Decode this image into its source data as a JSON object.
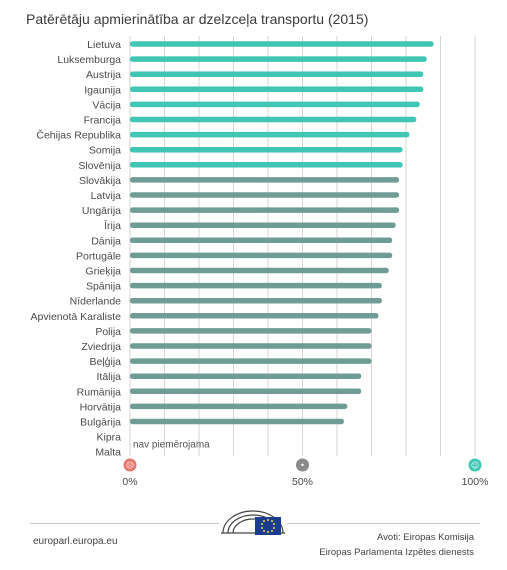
{
  "chart_data": {
    "type": "bar",
    "orientation": "horizontal",
    "title": "Patērētāju apmierinātība ar dzelzceļa transportu (2015)",
    "xlim": [
      0,
      100
    ],
    "ticks": [
      "0%",
      "50%",
      "100%"
    ],
    "grid": true,
    "categories": [
      "Lietuva",
      "Luksemburga",
      "Austrija",
      "Igaunija",
      "Vācija",
      "Francija",
      "Čehijas Republika",
      "Somija",
      "Slovēnija",
      "Slovākija",
      "Latvija",
      "Ungārija",
      "Īrija",
      "Dānija",
      "Portugāle",
      "Grieķija",
      "Spānija",
      "Nīderlande",
      "Apvienotā Karaliste",
      "Polija",
      "Zviedrija",
      "Beļģija",
      "Itālija",
      "Rumānija",
      "Horvātija",
      "Bulgārija",
      "Kipra",
      "Malta"
    ],
    "values": [
      88,
      86,
      85,
      85,
      84,
      83,
      81,
      79,
      79,
      78,
      78,
      78,
      77,
      76,
      76,
      75,
      73,
      73,
      72,
      70,
      70,
      70,
      67,
      67,
      63,
      62,
      null,
      null
    ],
    "highlight_count": 9,
    "colors": {
      "highlight": "#3fc6b4",
      "normal": "#6f9c95"
    },
    "na_label": "nav piemērojama",
    "scale_icons": [
      {
        "name": "sad-face-icon",
        "color": "#e8766d",
        "glyph": "☹"
      },
      {
        "name": "neutral-face-icon",
        "color": "#8a8a8a",
        "glyph": "•"
      },
      {
        "name": "happy-face-icon",
        "color": "#3fc6b4",
        "glyph": "☺"
      }
    ]
  },
  "footer": {
    "site": "europarl.europa.eu",
    "source_line1": "Avoti: Eiropas Komisija",
    "source_line2": "Eiropas Parlamenta Izpētes dienests"
  }
}
